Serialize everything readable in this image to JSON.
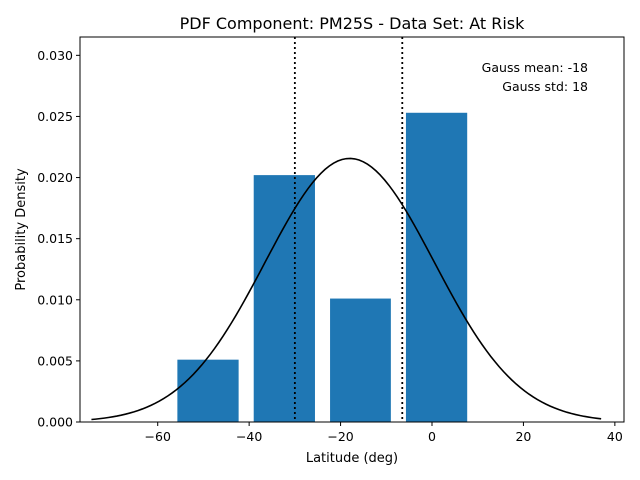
{
  "chart_data": {
    "type": "bar",
    "title": "PDF Component: PM25S - Data Set: At Risk",
    "xlabel": "Latitude (deg)",
    "ylabel": "Probability Density",
    "xlim": [
      -77,
      42
    ],
    "ylim": [
      0,
      0.0315
    ],
    "xticks": [
      -60,
      -40,
      -20,
      0,
      20,
      40
    ],
    "xtick_labels": [
      "−60",
      "−40",
      "−20",
      "0",
      "20",
      "40"
    ],
    "yticks": [
      0,
      0.005,
      0.01,
      0.015,
      0.02,
      0.025,
      0.03
    ],
    "ytick_labels": [
      "0.000",
      "0.005",
      "0.010",
      "0.015",
      "0.020",
      "0.025",
      "0.030"
    ],
    "bars": [
      {
        "x_start": -55.7,
        "x_end": -42.3,
        "value": 0.0051
      },
      {
        "x_start": -39.0,
        "x_end": -25.6,
        "value": 0.0202
      },
      {
        "x_start": -22.3,
        "x_end": -9.0,
        "value": 0.0101
      },
      {
        "x_start": -5.7,
        "x_end": 7.7,
        "value": 0.0253
      }
    ],
    "bar_color": "#1f77b4",
    "curve": {
      "type": "gaussian",
      "mean": -18,
      "std": 18.5,
      "x_range": [
        -74.5,
        37
      ],
      "color": "#000000"
    },
    "vlines": [
      {
        "x": -30,
        "style": "dotted",
        "color": "#000000"
      },
      {
        "x": -6.5,
        "style": "dotted",
        "color": "#000000"
      }
    ],
    "annotations": [
      "Gauss mean: -18",
      "Gauss std: 18"
    ],
    "grid": false
  }
}
